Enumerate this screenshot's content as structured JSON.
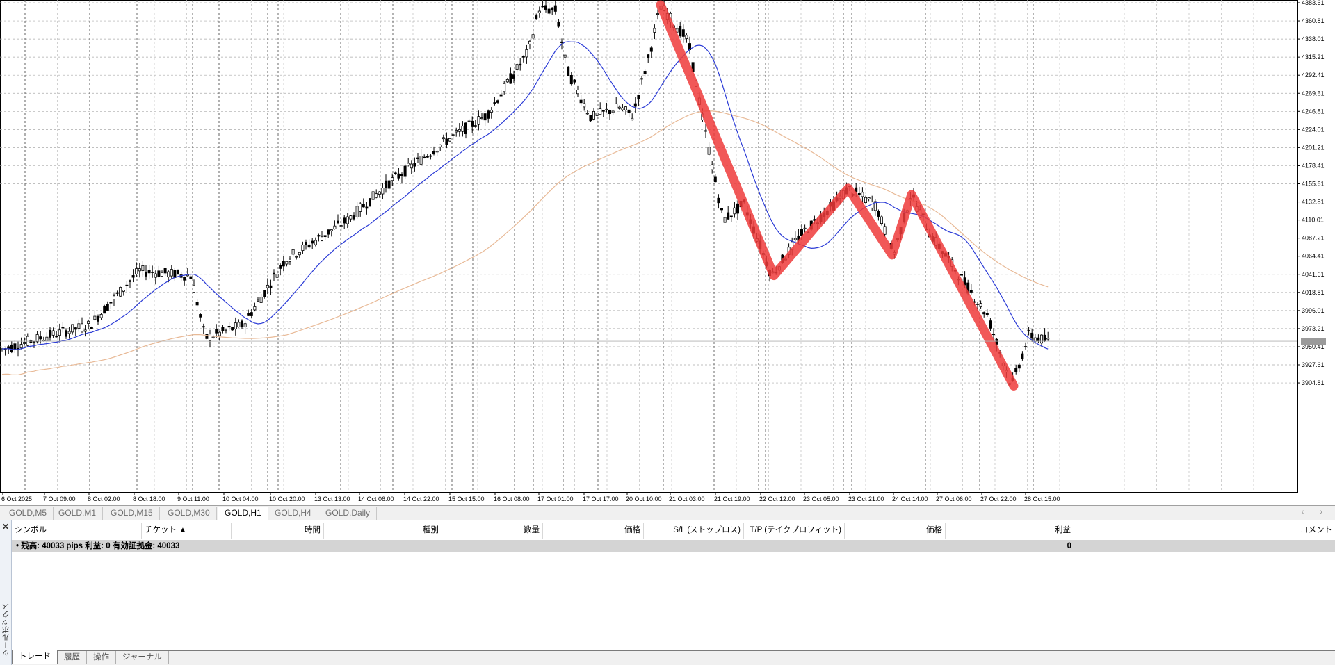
{
  "chart": {
    "y_labels": [
      "4383.61",
      "4360.81",
      "4338.01",
      "4315.21",
      "4292.41",
      "4269.61",
      "4246.81",
      "4224.01",
      "4201.21",
      "4178.41",
      "4155.61",
      "4132.81",
      "4110.01",
      "4087.21",
      "4064.41",
      "4041.61",
      "4018.81",
      "3996.01",
      "3973.21",
      "3950.41",
      "3927.61",
      "3904.81"
    ],
    "x_labels": [
      "6 Oct 2025",
      "7 Oct 09:00",
      "8 Oct 02:00",
      "8 Oct 18:00",
      "9 Oct 11:00",
      "10 Oct 04:00",
      "10 Oct 20:00",
      "13 Oct 13:00",
      "14 Oct 06:00",
      "14 Oct 22:00",
      "15 Oct 15:00",
      "16 Oct 08:00",
      "17 Oct 01:00",
      "17 Oct 17:00",
      "20 Oct 10:00",
      "21 Oct 03:00",
      "21 Oct 19:00",
      "22 Oct 12:00",
      "23 Oct 05:00",
      "23 Oct 21:00",
      "24 Oct 14:00",
      "27 Oct 06:00",
      "27 Oct 22:00",
      "28 Oct 15:00"
    ],
    "current_price": "3957.31",
    "colors": {
      "candles": "#000000",
      "fast_ma": "#2b3bd6",
      "slow_ma": "#e8b996",
      "zigzag": "#ef3b3b",
      "grid": "#aaaaaa"
    },
    "zigzag_prices": [
      4381,
      4040,
      4150,
      4066,
      4142,
      3901
    ],
    "zigzag_labels": [
      "20 Oct 10:00",
      "22 Oct 12:00",
      "23 Oct 21:00",
      "24 Oct 06:00",
      "24 Oct 14:00",
      "28 Oct 03:00"
    ]
  },
  "symbol_tabs": [
    "GOLD,M5",
    "GOLD,M1",
    "GOLD,M15",
    "GOLD,M30",
    "GOLD,H1",
    "GOLD,H4",
    "GOLD,Daily"
  ],
  "active_tab": "GOLD,H1",
  "tab_scroll": "‹ ›",
  "toolbox": {
    "title": "ツールボックス",
    "close": "✕",
    "columns": [
      "シンボル",
      "チケット ▲",
      "時間",
      "種別",
      "数量",
      "価格",
      "S/L (ストップロス)",
      "T/P (テイクプロフィット)",
      "価格",
      "利益",
      "コメント"
    ],
    "summary": "• 残高: 40033 pips   利益: 0   有効証拠金: 40033",
    "summary_profit": "0",
    "bottom_tabs": [
      "トレード",
      "履歴",
      "操作",
      "ジャーナル"
    ]
  }
}
